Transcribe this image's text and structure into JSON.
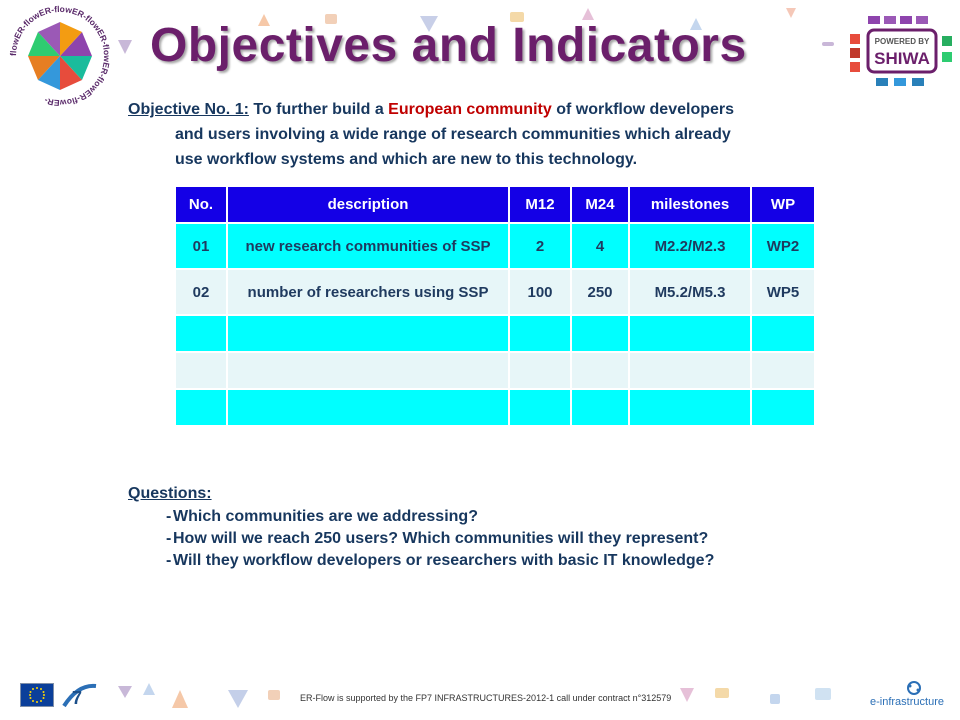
{
  "title": "Objectives and Indicators",
  "objective": {
    "lead": "Objective No. 1:",
    "text_before": " To further build a ",
    "highlight": "European community",
    "text_after": " of workflow developers",
    "line2": "and users involving a wide range of research communities which already",
    "line3": "use workflow systems and which are new to this technology."
  },
  "table": {
    "headers": [
      "No.",
      "description",
      "M12",
      "M24",
      "milestones",
      "WP"
    ],
    "rows": [
      [
        "01",
        "new research communities of SSP",
        "2",
        "4",
        "M2.2/M2.3",
        "WP2"
      ],
      [
        "02",
        "number of researchers using SSP",
        "100",
        "250",
        "M5.2/M5.3",
        "WP5"
      ],
      [
        "",
        "",
        "",
        "",
        "",
        ""
      ],
      [
        "",
        "",
        "",
        "",
        "",
        ""
      ],
      [
        "",
        "",
        "",
        "",
        "",
        ""
      ]
    ]
  },
  "questions": {
    "heading": "Questions:",
    "items": [
      "Which communities are we addressing?",
      "How will we reach 250 users? Which communities will they represent?",
      "Will they workflow developers or researchers with basic IT knowledge?"
    ],
    "bullet": "-"
  },
  "logos": {
    "flower_ring_text": "flowER-flowER-flowER-flowER-flowER-flowER-flowER-",
    "shiwa_powered": "POWERED BY",
    "shiwa_name": "SHIWA",
    "einfra": "e-infrastructure"
  },
  "footer": {
    "text": "ER-Flow is supported by the FP7 INFRASTRUCTURES-2012-1 call under contract n°312579"
  },
  "colors": {
    "title": "#6b1f6b",
    "header_bg": "#1400e6",
    "cyan_row": "#00ffff",
    "light_row": "#e7f6f8",
    "highlight": "#c00000"
  }
}
